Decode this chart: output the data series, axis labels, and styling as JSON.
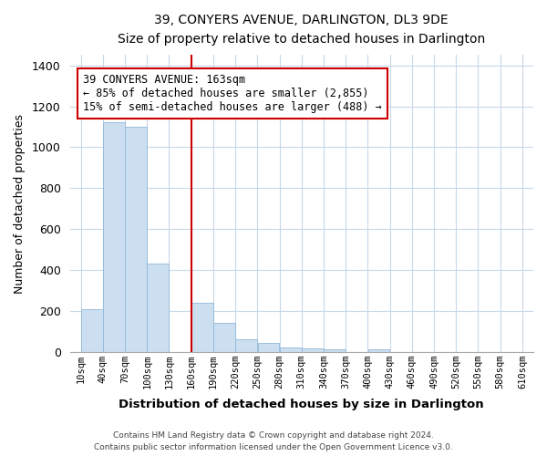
{
  "title": "39, CONYERS AVENUE, DARLINGTON, DL3 9DE",
  "subtitle": "Size of property relative to detached houses in Darlington",
  "xlabel": "Distribution of detached houses by size in Darlington",
  "ylabel": "Number of detached properties",
  "bar_color": "#ccdff0",
  "bar_edge_color": "#90b8d8",
  "background_color": "#ffffff",
  "grid_color": "#c8d8e8",
  "vline_color": "#cc0000",
  "vline_x": 160,
  "annotation_line1": "39 CONYERS AVENUE: 163sqm",
  "annotation_line2": "← 85% of detached houses are smaller (2,855)",
  "annotation_line3": "15% of semi-detached houses are larger (488) →",
  "annotation_box_color": "#ffffff",
  "annotation_box_edge": "#cc0000",
  "bin_edges": [
    10,
    40,
    70,
    100,
    130,
    160,
    190,
    220,
    250,
    280,
    310,
    340,
    370,
    400,
    430,
    460,
    490,
    520,
    550,
    580,
    610
  ],
  "bar_heights": [
    210,
    1120,
    1100,
    430,
    0,
    240,
    140,
    60,
    45,
    20,
    15,
    10,
    0,
    10,
    0,
    0,
    0,
    0,
    0,
    0
  ],
  "ylim": [
    0,
    1450
  ],
  "yticks": [
    0,
    200,
    400,
    600,
    800,
    1000,
    1200,
    1400
  ],
  "footer_line1": "Contains HM Land Registry data © Crown copyright and database right 2024.",
  "footer_line2": "Contains public sector information licensed under the Open Government Licence v3.0."
}
